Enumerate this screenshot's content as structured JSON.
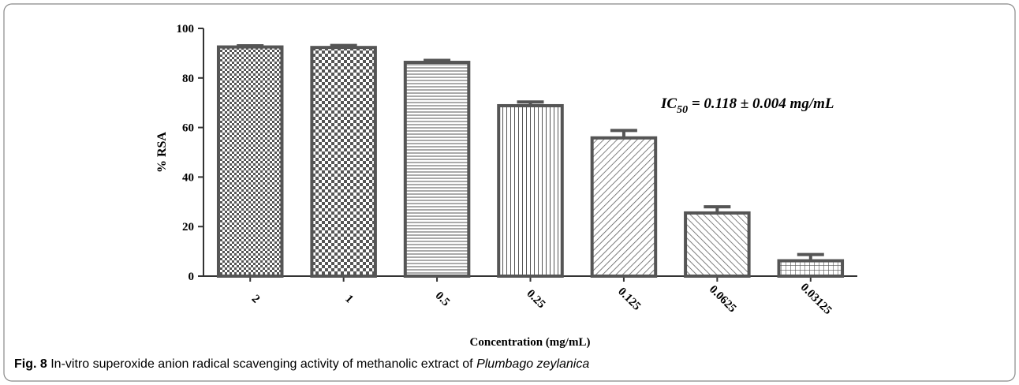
{
  "chart_data": {
    "type": "bar",
    "categories": [
      "2",
      "1",
      "0.5",
      "0.25",
      "0.125",
      "0.0625",
      "0.03125"
    ],
    "values": [
      92.5,
      92.3,
      86.3,
      68.8,
      55.8,
      25.5,
      6.2
    ],
    "errors": [
      0.5,
      0.8,
      0.8,
      1.5,
      3,
      2.5,
      2.5
    ],
    "patterns": [
      "fine-check",
      "check",
      "horizontal",
      "vertical",
      "diagonal-up",
      "diagonal-down",
      "grid"
    ],
    "color": "#555555",
    "ylim": [
      0,
      100
    ],
    "yticks": [
      0,
      20,
      40,
      60,
      80,
      100
    ],
    "ylabel": "% RSA",
    "xlabel": "Concentration (mg/mL)",
    "annotation": {
      "main": "IC",
      "sub": "50",
      "rest": " = 0.118 ± 0.004 mg/mL"
    }
  },
  "caption": {
    "label": "Fig. 8",
    "text": " In-vitro superoxide anion radical scavenging activity of methanolic extract of ",
    "species": "Plumbago zeylanica"
  }
}
